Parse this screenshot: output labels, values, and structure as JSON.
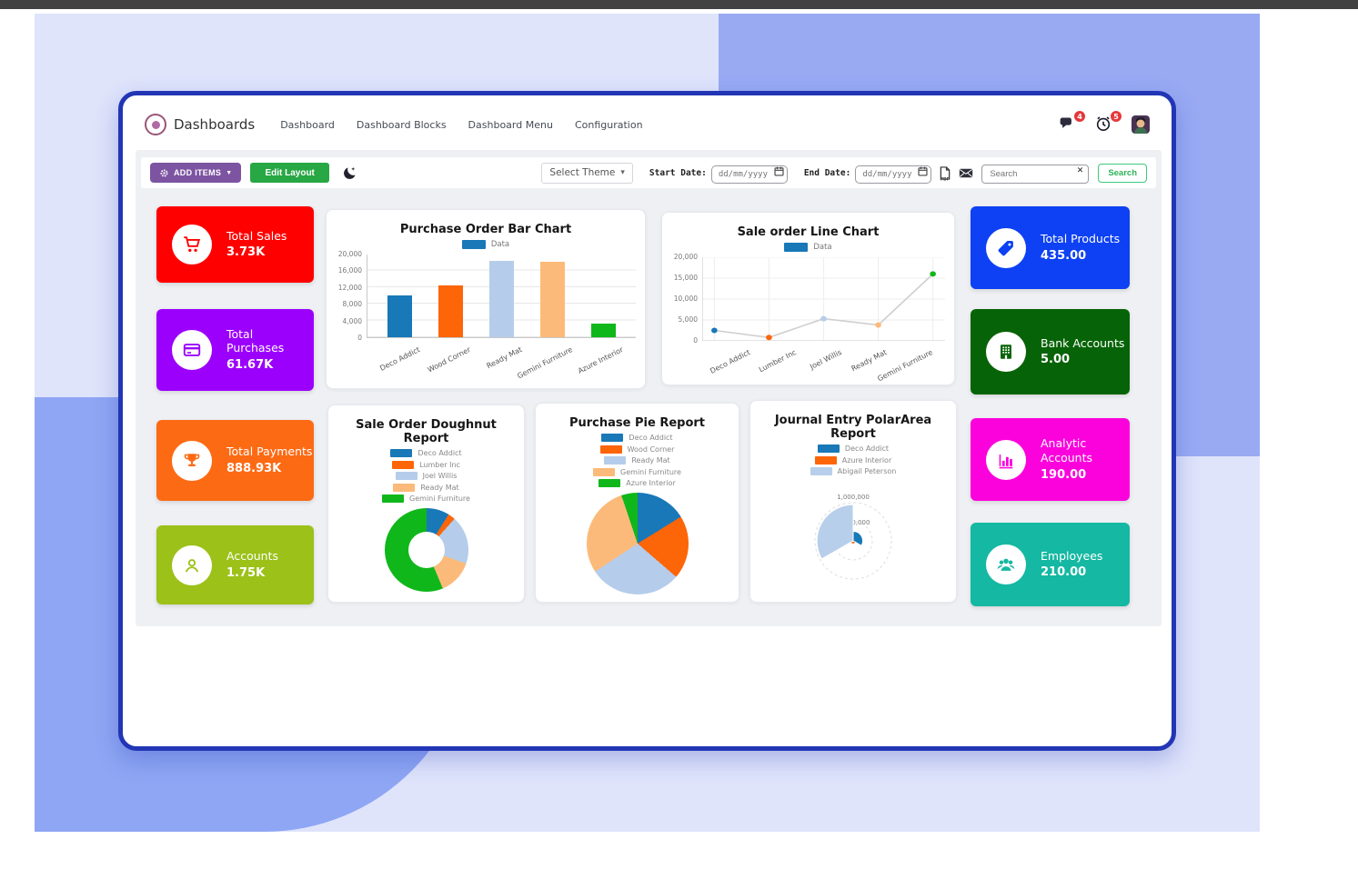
{
  "navbar": {
    "brand": "Dashboards",
    "menu": [
      "Dashboard",
      "Dashboard Blocks",
      "Dashboard Menu",
      "Configuration"
    ],
    "message_badge": "4",
    "activity_badge": "5"
  },
  "toolbar": {
    "add_items_label": "ADD ITEMS",
    "edit_layout_label": "Edit Layout",
    "select_theme_label": "Select Theme",
    "start_date_label": "Start Date:",
    "end_date_label": "End Date:",
    "date_placeholder": "dd/mm/yyyy",
    "search_placeholder": "Search",
    "search_button_label": "Search"
  },
  "kpi_cards": {
    "left": [
      {
        "label": "Total Sales",
        "value": "3.73K",
        "color": "#fe0000",
        "icon": "cart-icon"
      },
      {
        "label": "Total Purchases",
        "value": "61.67K",
        "color": "#9b00fc",
        "icon": "credit-card-icon"
      },
      {
        "label": "Total Payments",
        "value": "888.93K",
        "color": "#fd6a14",
        "icon": "trophy-icon"
      },
      {
        "label": "Accounts",
        "value": "1.75K",
        "color": "#9cc118",
        "icon": "user-icon"
      }
    ],
    "right": [
      {
        "label": "Total Products",
        "value": "435.00",
        "color": "#0d41f3",
        "icon": "tag-icon"
      },
      {
        "label": "Bank Accounts",
        "value": "5.00",
        "color": "#076307",
        "icon": "bank-icon"
      },
      {
        "label": "Analytic Accounts",
        "value": "190.00",
        "color": "#fb02dd",
        "icon": "bar-chart-icon"
      },
      {
        "label": "Employees",
        "value": "210.00",
        "color": "#15b8a2",
        "icon": "employees-icon"
      }
    ]
  },
  "chart_data": [
    {
      "id": "bar",
      "type": "bar",
      "title": "Purchase Order Bar Chart",
      "legend": "Data",
      "legend_color": "#1878b8",
      "categories": [
        "Deco Addict",
        "Wood Corner",
        "Ready Mat",
        "Gemini Furniture",
        "Azure Interior"
      ],
      "values": [
        10000,
        12500,
        18200,
        18000,
        3200
      ],
      "colors": [
        "#1878b8",
        "#fd6509",
        "#b5cdea",
        "#fcba7a",
        "#10b71b"
      ],
      "ylim": [
        0,
        20000
      ],
      "ytick_labels": [
        "20,000",
        "16,000",
        "12,000",
        "8,000",
        "4,000",
        "0"
      ],
      "grid": true,
      "legend_position": "top"
    },
    {
      "id": "line",
      "type": "line",
      "title": "Sale order Line Chart",
      "legend": "Data",
      "legend_color": "#1878b8",
      "categories": [
        "Deco Addict",
        "Lumber Inc",
        "Joel Willis",
        "Ready Mat",
        "Gemini Furniture"
      ],
      "values": [
        2500,
        800,
        5300,
        3800,
        16000
      ],
      "point_colors": [
        "#1878b8",
        "#fd6509",
        "#b5cdea",
        "#fcba7a",
        "#10b71b"
      ],
      "line_color": "#cfcfcf",
      "ylim": [
        0,
        20000
      ],
      "ytick_labels": [
        "20,000",
        "15,000",
        "10,000",
        "5,000",
        "0"
      ],
      "grid": true,
      "legend_position": "top"
    },
    {
      "id": "doughnut",
      "type": "doughnut",
      "title": "Sale Order Doughnut Report",
      "labels": [
        "Deco Addict",
        "Lumber Inc",
        "Joel Willis",
        "Ready Mat",
        "Gemini Furniture"
      ],
      "values": [
        2500,
        800,
        5300,
        3800,
        16000
      ],
      "colors": [
        "#1878b8",
        "#fd6509",
        "#b5cdea",
        "#fcba7a",
        "#10b71b"
      ],
      "legend_position": "top"
    },
    {
      "id": "pie",
      "type": "pie",
      "title": "Purchase Pie Report",
      "labels": [
        "Deco Addict",
        "Wood Corner",
        "Ready Mat",
        "Gemini Furniture",
        "Azure Interior"
      ],
      "values": [
        10000,
        12500,
        18200,
        18000,
        3200
      ],
      "colors": [
        "#1878b8",
        "#fd6509",
        "#b5cdea",
        "#fcba7a",
        "#10b71b"
      ],
      "legend_position": "top"
    },
    {
      "id": "polar",
      "type": "polarArea",
      "title": "Journal Entry PolarArea Report",
      "labels": [
        "Deco Addict",
        "Azure Interior",
        "Abigail Peterson"
      ],
      "values": [
        250000,
        80000,
        950000
      ],
      "colors": [
        "#1878b8",
        "#fd6509",
        "#b8cfeb"
      ],
      "rmax": 1000000,
      "rtick_labels": [
        "500,000",
        "1,000,000"
      ],
      "legend_position": "top"
    }
  ]
}
